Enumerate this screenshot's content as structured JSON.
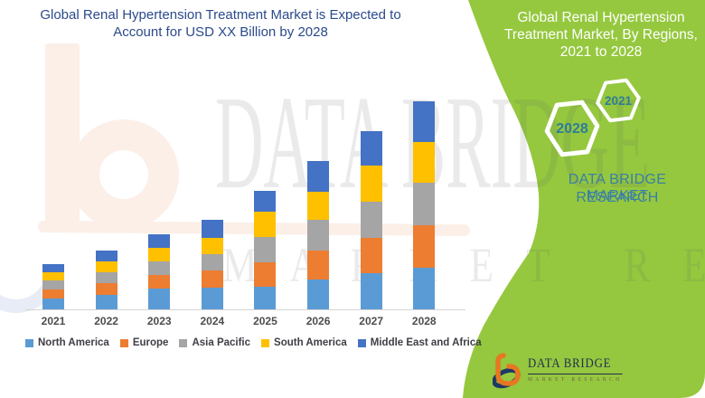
{
  "header": {
    "title_lines": [
      "Global Renal Hypertension Treatment Market is Expected to",
      "Account for USD XX Billion by 2028"
    ],
    "color": "#2B4A8C"
  },
  "chart_data": {
    "type": "bar",
    "stacked": true,
    "title": "Global Renal Hypertension Treatment Market is Expected to Account for USD XX Billion by 2028",
    "xlabel": "",
    "ylabel": "",
    "y_axis_visible": false,
    "gridlines": false,
    "legend_position": "bottom",
    "ylim": [
      0,
      240
    ],
    "categories": [
      "2021",
      "2022",
      "2023",
      "2024",
      "2025",
      "2026",
      "2027",
      "2028"
    ],
    "series": [
      {
        "name": "North America",
        "color": "#5B9BD5",
        "values": [
          12,
          16,
          23,
          24,
          25,
          33,
          40,
          46
        ]
      },
      {
        "name": "Europe",
        "color": "#ED7D31",
        "values": [
          10,
          13,
          15,
          19,
          27,
          32,
          39,
          47
        ]
      },
      {
        "name": "Asia Pacific",
        "color": "#A5A5A5",
        "values": [
          10,
          12,
          15,
          18,
          28,
          34,
          40,
          47
        ]
      },
      {
        "name": "South America",
        "color": "#FFC000",
        "values": [
          9,
          12,
          15,
          18,
          28,
          31,
          40,
          45
        ]
      },
      {
        "name": "Middle East and Africa",
        "color": "#4472C4",
        "values": [
          9,
          12,
          15,
          20,
          23,
          34,
          38,
          45
        ]
      }
    ]
  },
  "banner": {
    "background": "#95C83E",
    "title_lines": [
      "Global Renal Hypertension",
      "Treatment Market, By Regions,",
      "2021 to 2028"
    ],
    "title_color": "#FFFFFF",
    "hexagons": [
      {
        "label": "2028"
      },
      {
        "label": "2021"
      }
    ],
    "hexagon_text_color": "#2E7D99",
    "brand_lines": [
      "DATA BRIDGE MARKET",
      "RESEARCH"
    ],
    "brand_color": "#3A7FA6"
  },
  "watermark": {
    "large_text": "DATA BRIDGE",
    "small_text": "MARKET RESEARCH",
    "text_color": "rgba(92,92,98,0.13)"
  },
  "footer_logo": {
    "name": "DATA BRIDGE",
    "tagline": "MARKET RESEARCH",
    "name_color": "#222D50",
    "tagline_color": "#6B5F4C",
    "mark_orange": "#E87722",
    "mark_navy": "#1F3864"
  }
}
